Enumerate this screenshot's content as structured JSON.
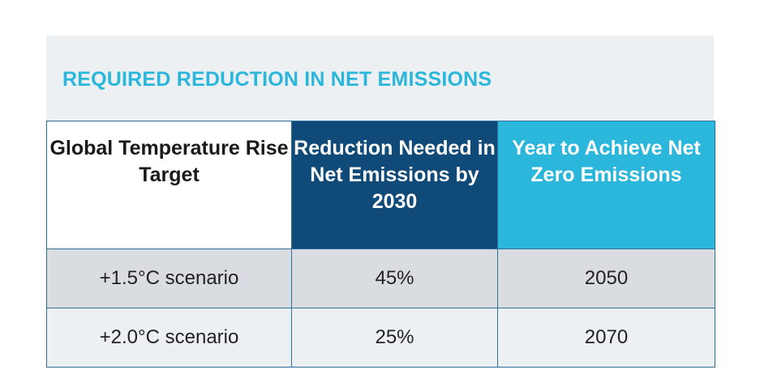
{
  "title": "REQUIRED REDUCTION IN NET EMISSIONS",
  "headers": {
    "scenario": "Global Temperature Rise Target",
    "reduction": "Reduction Needed in Net Emissions by 2030",
    "year": "Year to Achieve Net Zero Emissions"
  },
  "rows": [
    {
      "scenario": "+1.5°C scenario",
      "reduction": "45%",
      "year": "2050"
    },
    {
      "scenario": "+2.0°C scenario",
      "reduction": "25%",
      "year": "2070"
    }
  ],
  "colors": {
    "title": "#2bb6dc",
    "header_dark": "#0f4a78",
    "header_light": "#2bb6dc",
    "row_a": "#d9dde2",
    "row_b": "#edf0f3",
    "border": "#2e6f99"
  }
}
